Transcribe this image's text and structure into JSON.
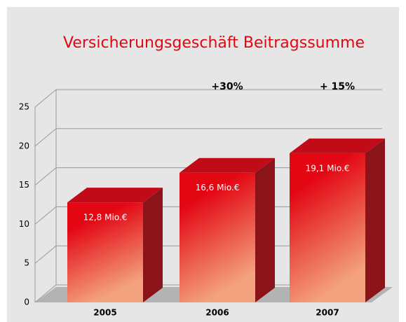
{
  "chart_data": {
    "type": "bar3d",
    "title": "Versicherungsgeschäft Beitragssumme",
    "categories": [
      "2005",
      "2006",
      "2007"
    ],
    "values": [
      12.8,
      16.6,
      19.1
    ],
    "value_labels": [
      "12,8 Mio.€",
      "16,6 Mio.€",
      "19,1 Mio.€"
    ],
    "annotations": [
      "+30%",
      "+ 15%"
    ],
    "color": "#e30613",
    "ylim": [
      0,
      25
    ],
    "yticks": [
      0,
      5,
      10,
      15,
      20,
      25
    ],
    "grid": true
  }
}
